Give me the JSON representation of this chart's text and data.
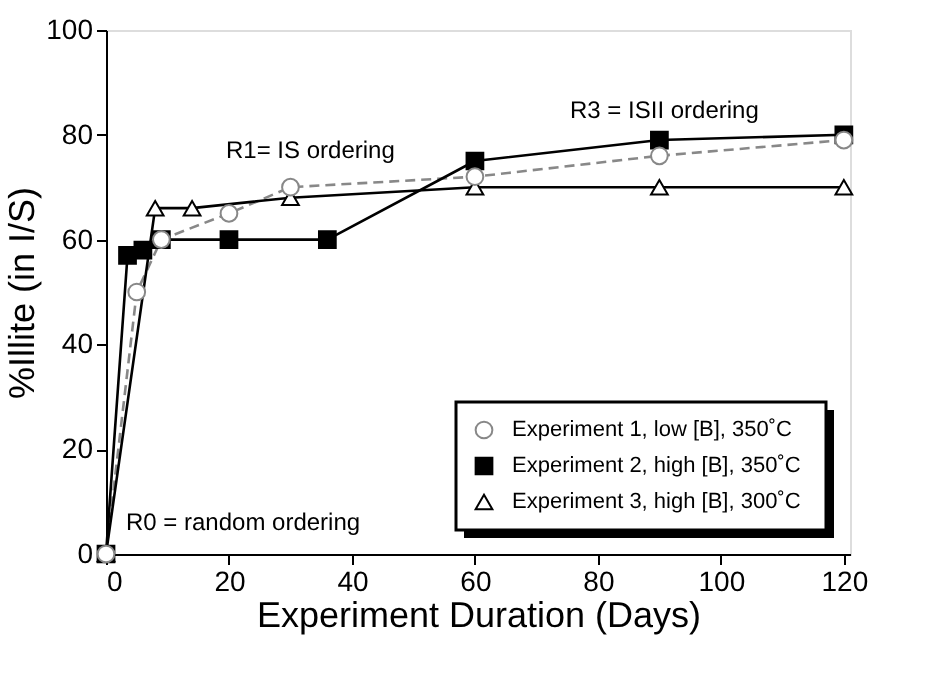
{
  "chart_data": {
    "type": "line",
    "xlabel": "Experiment Duration (Days)",
    "ylabel": "%Illite (in I/S)",
    "xlim": [
      0,
      121
    ],
    "ylim": [
      0,
      100
    ],
    "xticks": [
      0,
      20,
      40,
      60,
      80,
      100,
      120
    ],
    "yticks": [
      0,
      20,
      40,
      60,
      80,
      100
    ],
    "legend": "bottom right",
    "series": [
      {
        "name": "Experiment 1, low [B], 350˚C",
        "x": [
          0,
          5,
          9,
          20,
          30,
          60,
          90,
          120
        ],
        "values": [
          0,
          50,
          60,
          65,
          70,
          72,
          76,
          79
        ],
        "color": "#888888",
        "marker": "circle",
        "line_style": "dashed"
      },
      {
        "name": "Experiment 2, high [B], 350˚C",
        "x": [
          0,
          3.5,
          6,
          9,
          20,
          36,
          60,
          90,
          120
        ],
        "values": [
          0,
          57,
          58,
          60,
          60,
          60,
          75,
          79,
          80
        ],
        "color": "#000000",
        "marker": "square",
        "line_style": "solid"
      },
      {
        "name": "Experiment 3, high [B], 300˚C",
        "x": [
          0,
          8,
          14,
          30,
          60,
          90,
          120
        ],
        "values": [
          0,
          66,
          66,
          68,
          70,
          70,
          70
        ],
        "color": "#000000",
        "marker": "triangle",
        "line_style": "solid"
      }
    ],
    "annotations": [
      "R0 = random ordering",
      "R1= IS ordering",
      "R3 = ISII ordering"
    ]
  }
}
